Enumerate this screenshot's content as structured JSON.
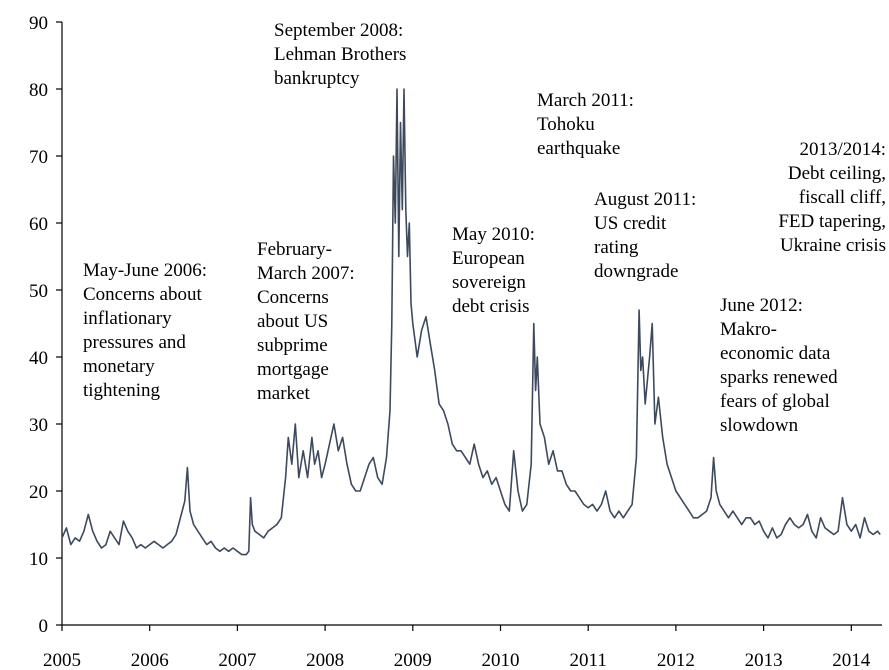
{
  "chart_data": {
    "type": "line",
    "title": "",
    "xlabel": "",
    "ylabel": "",
    "xlim": [
      2005.0,
      2014.35
    ],
    "ylim": [
      0,
      90
    ],
    "grid": false,
    "x_ticks": [
      "2005",
      "2006",
      "2007",
      "2008",
      "2009",
      "2010",
      "2011",
      "2012",
      "2013",
      "2014"
    ],
    "y_ticks": [
      "0",
      "10",
      "20",
      "30",
      "40",
      "50",
      "60",
      "70",
      "80",
      "90"
    ],
    "series": [
      {
        "name": "",
        "color": "#3d4a5e",
        "x": [
          2005.0,
          2005.05,
          2005.1,
          2005.15,
          2005.2,
          2005.25,
          2005.3,
          2005.35,
          2005.4,
          2005.45,
          2005.5,
          2005.55,
          2005.6,
          2005.65,
          2005.7,
          2005.75,
          2005.8,
          2005.85,
          2005.9,
          2005.95,
          2006.0,
          2006.05,
          2006.1,
          2006.15,
          2006.2,
          2006.25,
          2006.3,
          2006.35,
          2006.4,
          2006.43,
          2006.46,
          2006.5,
          2006.55,
          2006.6,
          2006.65,
          2006.7,
          2006.75,
          2006.8,
          2006.85,
          2006.9,
          2006.95,
          2007.0,
          2007.05,
          2007.1,
          2007.13,
          2007.15,
          2007.17,
          2007.2,
          2007.25,
          2007.3,
          2007.35,
          2007.4,
          2007.45,
          2007.5,
          2007.55,
          2007.58,
          2007.62,
          2007.66,
          2007.7,
          2007.75,
          2007.8,
          2007.85,
          2007.88,
          2007.92,
          2007.96,
          2008.0,
          2008.05,
          2008.1,
          2008.15,
          2008.2,
          2008.25,
          2008.3,
          2008.35,
          2008.4,
          2008.45,
          2008.5,
          2008.55,
          2008.6,
          2008.65,
          2008.7,
          2008.74,
          2008.76,
          2008.78,
          2008.8,
          2008.82,
          2008.84,
          2008.86,
          2008.88,
          2008.9,
          2008.92,
          2008.94,
          2008.96,
          2008.98,
          2009.0,
          2009.05,
          2009.1,
          2009.15,
          2009.2,
          2009.25,
          2009.3,
          2009.35,
          2009.4,
          2009.45,
          2009.5,
          2009.55,
          2009.6,
          2009.65,
          2009.7,
          2009.75,
          2009.8,
          2009.85,
          2009.9,
          2009.95,
          2010.0,
          2010.05,
          2010.1,
          2010.15,
          2010.2,
          2010.25,
          2010.3,
          2010.35,
          2010.38,
          2010.4,
          2010.42,
          2010.45,
          2010.5,
          2010.55,
          2010.6,
          2010.65,
          2010.7,
          2010.75,
          2010.8,
          2010.85,
          2010.9,
          2010.95,
          2011.0,
          2011.05,
          2011.1,
          2011.15,
          2011.2,
          2011.25,
          2011.3,
          2011.35,
          2011.4,
          2011.45,
          2011.5,
          2011.55,
          2011.58,
          2011.6,
          2011.62,
          2011.65,
          2011.7,
          2011.73,
          2011.76,
          2011.8,
          2011.85,
          2011.9,
          2011.95,
          2012.0,
          2012.05,
          2012.1,
          2012.15,
          2012.2,
          2012.25,
          2012.3,
          2012.35,
          2012.4,
          2012.43,
          2012.46,
          2012.5,
          2012.55,
          2012.6,
          2012.65,
          2012.7,
          2012.75,
          2012.8,
          2012.85,
          2012.9,
          2012.95,
          2013.0,
          2013.05,
          2013.1,
          2013.15,
          2013.2,
          2013.25,
          2013.3,
          2013.35,
          2013.4,
          2013.45,
          2013.5,
          2013.55,
          2013.6,
          2013.65,
          2013.7,
          2013.75,
          2013.8,
          2013.85,
          2013.9,
          2013.95,
          2014.0,
          2014.05,
          2014.1,
          2014.15,
          2014.2,
          2014.25,
          2014.3,
          2014.33
        ],
        "values": [
          13.0,
          14.5,
          12.0,
          13.0,
          12.5,
          14.0,
          16.5,
          14.0,
          12.5,
          11.5,
          12.0,
          14.0,
          13.0,
          12.0,
          15.5,
          14.0,
          13.0,
          11.5,
          12.0,
          11.5,
          12.0,
          12.5,
          12.0,
          11.5,
          12.0,
          12.5,
          13.5,
          16.0,
          18.5,
          23.5,
          17.0,
          15.0,
          14.0,
          13.0,
          12.0,
          12.5,
          11.5,
          11.0,
          11.5,
          11.0,
          11.5,
          11.0,
          10.5,
          10.5,
          11.0,
          19.0,
          15.0,
          14.0,
          13.5,
          13.0,
          14.0,
          14.5,
          15.0,
          16.0,
          22.0,
          28.0,
          24.0,
          30.0,
          22.0,
          26.0,
          22.0,
          28.0,
          24.0,
          26.0,
          22.0,
          24.0,
          27.0,
          30.0,
          26.0,
          28.0,
          24.0,
          21.0,
          20.0,
          20.0,
          22.0,
          24.0,
          25.0,
          22.0,
          21.0,
          25.0,
          32.0,
          45.0,
          70.0,
          60.0,
          80.0,
          55.0,
          75.0,
          62.0,
          80.0,
          62.0,
          55.0,
          60.0,
          48.0,
          45.0,
          40.0,
          44.0,
          46.0,
          42.0,
          38.0,
          33.0,
          32.0,
          30.0,
          27.0,
          26.0,
          26.0,
          25.0,
          24.0,
          27.0,
          24.0,
          22.0,
          23.0,
          21.0,
          22.0,
          20.0,
          18.0,
          17.0,
          26.0,
          20.0,
          17.0,
          18.0,
          24.0,
          45.0,
          35.0,
          40.0,
          30.0,
          28.0,
          24.0,
          26.0,
          23.0,
          23.0,
          21.0,
          20.0,
          20.0,
          19.0,
          18.0,
          17.5,
          18.0,
          17.0,
          18.0,
          20.0,
          17.0,
          16.0,
          17.0,
          16.0,
          17.0,
          18.0,
          25.0,
          47.0,
          38.0,
          40.0,
          33.0,
          40.0,
          45.0,
          30.0,
          34.0,
          28.0,
          24.0,
          22.0,
          20.0,
          19.0,
          18.0,
          17.0,
          16.0,
          16.0,
          16.5,
          17.0,
          19.0,
          25.0,
          20.0,
          18.0,
          17.0,
          16.0,
          17.0,
          16.0,
          15.0,
          16.0,
          16.0,
          15.0,
          15.5,
          14.0,
          13.0,
          14.5,
          13.0,
          13.5,
          15.0,
          16.0,
          15.0,
          14.5,
          15.0,
          16.5,
          14.0,
          13.0,
          16.0,
          14.5,
          14.0,
          13.5,
          14.0,
          19.0,
          15.0,
          14.0,
          15.0,
          13.0,
          16.0,
          14.0,
          13.5,
          14.0,
          13.5
        ]
      }
    ],
    "annotations": [
      {
        "lines": [
          "May-June 2006:",
          "Concerns about",
          "inflationary",
          "pressures and",
          "monetary",
          "tightening"
        ]
      },
      {
        "lines": [
          "February-",
          "March 2007:",
          "Concerns",
          "about US",
          "subprime",
          "mortgage",
          "market"
        ]
      },
      {
        "lines": [
          "September 2008:",
          "Lehman Brothers",
          "bankruptcy"
        ]
      },
      {
        "lines": [
          "May 2010:",
          "European",
          "sovereign",
          "debt crisis"
        ]
      },
      {
        "lines": [
          "March 2011:",
          "Tohoku",
          "earthquake"
        ]
      },
      {
        "lines": [
          "August 2011:",
          "US credit",
          "rating",
          "downgrade"
        ]
      },
      {
        "lines": [
          "June 2012:",
          "Makro-",
          "economic data",
          "sparks renewed",
          "fears of global",
          "slowdown"
        ]
      },
      {
        "lines": [
          "2013/2014:",
          "Debt ceiling,",
          "fiscall cliff,",
          "FED tapering,",
          "Ukraine crisis"
        ]
      }
    ]
  }
}
